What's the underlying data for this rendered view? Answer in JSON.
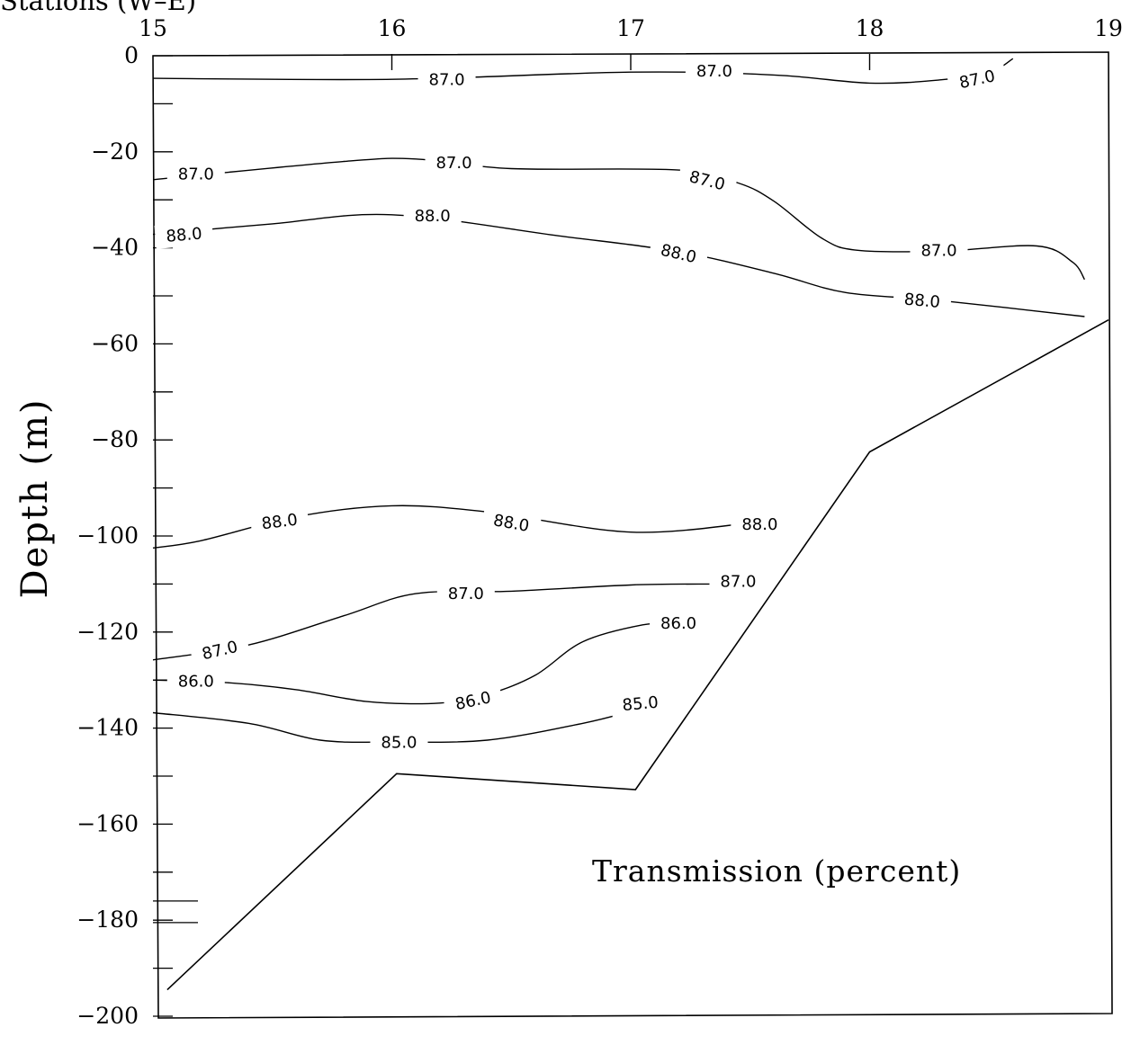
{
  "header": {
    "text": "Stations (W–E)"
  },
  "chart_data": {
    "type": "contour",
    "title": "",
    "xlabel": "",
    "ylabel": "Depth (m)",
    "annotation": "Transmission (percent)",
    "x_ticks": [
      "15",
      "16",
      "17",
      "18",
      "19"
    ],
    "xlim": [
      15,
      19
    ],
    "ylim": [
      -200,
      0
    ],
    "y_ticks": [
      "0",
      "−20",
      "−40",
      "−60",
      "−80",
      "−100",
      "−120",
      "−140",
      "−160",
      "−180",
      "−200"
    ],
    "y_tick_values": [
      0,
      -20,
      -40,
      -60,
      -80,
      -100,
      -120,
      -140,
      -160,
      -180,
      -200
    ],
    "y_minor_ticks": [
      -10,
      -30,
      -50,
      -70,
      -90,
      -110,
      -130,
      -150,
      -170,
      -190
    ],
    "bottom_profile": [
      [
        15.06,
        -194.5
      ],
      [
        16.02,
        -149.5
      ],
      [
        17.02,
        -152.8
      ],
      [
        18.0,
        -82.5
      ],
      [
        19.0,
        -55.0
      ]
    ],
    "contours": [
      {
        "level": "87.0",
        "points": [
          [
            15.0,
            -4.7
          ],
          [
            16.0,
            -4.9
          ],
          [
            17.0,
            -3.4
          ],
          [
            17.6,
            -4.0
          ],
          [
            18.0,
            -5.7
          ],
          [
            18.3,
            -5.0
          ],
          [
            18.5,
            -3.5
          ],
          [
            18.6,
            -0.6
          ]
        ],
        "labels": [
          {
            "x": 16.23,
            "y": -5.0,
            "rot": 0
          },
          {
            "x": 17.35,
            "y": -3.2,
            "rot": 0
          },
          {
            "x": 18.45,
            "y": -4.9,
            "rot": -12
          }
        ]
      },
      {
        "level": "87.0",
        "points": [
          [
            15.0,
            -25.8
          ],
          [
            15.8,
            -22.0
          ],
          [
            16.1,
            -21.5
          ],
          [
            16.5,
            -23.5
          ],
          [
            17.2,
            -23.8
          ],
          [
            17.45,
            -26.5
          ],
          [
            17.6,
            -30.3
          ],
          [
            17.8,
            -38.0
          ],
          [
            17.95,
            -40.5
          ],
          [
            18.3,
            -40.7
          ],
          [
            18.7,
            -39.6
          ],
          [
            18.85,
            -43.0
          ],
          [
            18.9,
            -46.6
          ]
        ],
        "labels": [
          {
            "x": 15.18,
            "y": -24.6,
            "rot": 0
          },
          {
            "x": 16.26,
            "y": -22.3,
            "rot": 0
          },
          {
            "x": 17.32,
            "y": -26.0,
            "rot": 14
          },
          {
            "x": 18.29,
            "y": -40.5,
            "rot": 0
          }
        ]
      },
      {
        "level": "88.0",
        "points": [
          [
            15.0,
            -37.2
          ],
          [
            15.5,
            -35.0
          ],
          [
            16.0,
            -33.1
          ],
          [
            16.7,
            -37.5
          ],
          [
            17.2,
            -40.8
          ],
          [
            17.6,
            -45.3
          ],
          [
            17.9,
            -49.3
          ],
          [
            18.3,
            -51.0
          ],
          [
            18.9,
            -54.3
          ]
        ],
        "labels": [
          {
            "x": 15.13,
            "y": -37.3,
            "rot": -5
          },
          {
            "x": 16.17,
            "y": -33.3,
            "rot": 0
          },
          {
            "x": 17.2,
            "y": -41.2,
            "rot": 13
          },
          {
            "x": 18.22,
            "y": -51.0,
            "rot": 5
          }
        ]
      },
      {
        "level": "88.0",
        "points": [
          [
            15.0,
            -102.5
          ],
          [
            15.2,
            -101.0
          ],
          [
            15.6,
            -96.0
          ],
          [
            16.0,
            -93.7
          ],
          [
            16.4,
            -95.0
          ],
          [
            17.0,
            -99.2
          ],
          [
            17.5,
            -97.3
          ]
        ],
        "labels": [
          {
            "x": 15.53,
            "y": -97.0,
            "rot": -7
          },
          {
            "x": 16.5,
            "y": -97.3,
            "rot": 10
          },
          {
            "x": 17.54,
            "y": -97.6,
            "rot": 0
          }
        ]
      },
      {
        "level": "87.0",
        "points": [
          [
            15.0,
            -125.8
          ],
          [
            15.4,
            -122.7
          ],
          [
            15.8,
            -116.6
          ],
          [
            16.1,
            -112.0
          ],
          [
            16.5,
            -111.5
          ],
          [
            17.0,
            -110.2
          ],
          [
            17.35,
            -110.0
          ]
        ],
        "labels": [
          {
            "x": 15.28,
            "y": -123.8,
            "rot": -13
          },
          {
            "x": 16.31,
            "y": -112.0,
            "rot": 0
          },
          {
            "x": 17.45,
            "y": -109.5,
            "rot": 0
          }
        ]
      },
      {
        "level": "86.0",
        "points": [
          [
            15.0,
            -130.0
          ],
          [
            15.3,
            -130.5
          ],
          [
            15.6,
            -132.0
          ],
          [
            15.9,
            -134.5
          ],
          [
            16.2,
            -134.8
          ],
          [
            16.4,
            -133.0
          ],
          [
            16.6,
            -129.0
          ],
          [
            16.8,
            -122.0
          ],
          [
            17.05,
            -118.5
          ],
          [
            17.2,
            -118.2
          ]
        ],
        "labels": [
          {
            "x": 15.18,
            "y": -130.2,
            "rot": 0
          },
          {
            "x": 16.34,
            "y": -134.3,
            "rot": -12
          },
          {
            "x": 17.2,
            "y": -118.2,
            "rot": 0
          }
        ]
      },
      {
        "level": "85.0",
        "points": [
          [
            15.0,
            -136.8
          ],
          [
            15.4,
            -139.0
          ],
          [
            15.7,
            -142.5
          ],
          [
            16.0,
            -142.9
          ],
          [
            16.4,
            -142.5
          ],
          [
            16.8,
            -139.0
          ],
          [
            17.0,
            -136.5
          ],
          [
            17.1,
            -135.0
          ]
        ],
        "labels": [
          {
            "x": 16.03,
            "y": -143.0,
            "rot": 0
          },
          {
            "x": 17.04,
            "y": -134.9,
            "rot": -5
          }
        ]
      }
    ]
  }
}
